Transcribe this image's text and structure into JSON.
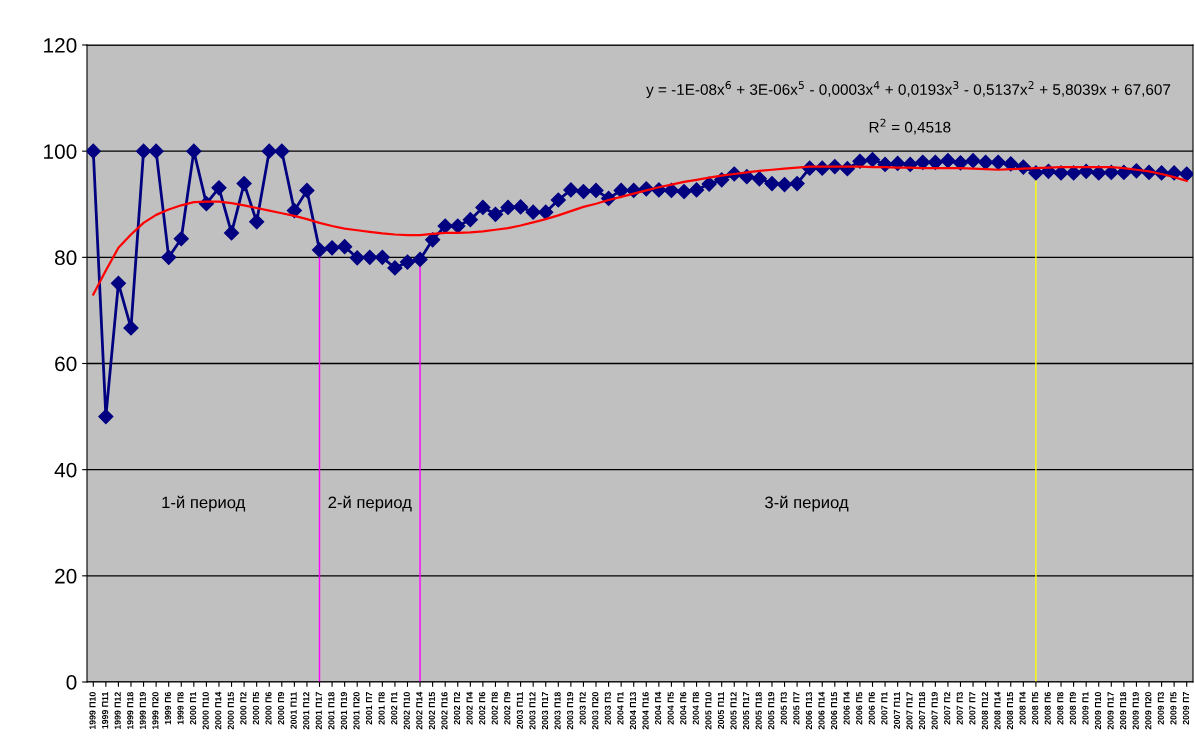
{
  "chart_data": {
    "type": "line",
    "categories": [
      "1999 П10",
      "1999 П11",
      "1999 П12",
      "1999 П18",
      "1999 П19",
      "1999 П20",
      "1999 П6",
      "1999 П8",
      "2000 П1",
      "2000 П10",
      "2000 П14",
      "2000 П15",
      "2000 П2",
      "2000 П5",
      "2000 П6",
      "2000 П9",
      "2001 П11",
      "2001 П12",
      "2001 П17",
      "2001 П18",
      "2001 П19",
      "2001 П20",
      "2001 П7",
      "2001 П8",
      "2002 П1",
      "2002 П10",
      "2002 П14",
      "2002 П15",
      "2002 П16",
      "2002 П2",
      "2002 П4",
      "2002 П6",
      "2002 П8",
      "2002 П9",
      "2003 П11",
      "2003 П12",
      "2003 П17",
      "2003 П18",
      "2003 П19",
      "2003 П2",
      "2003 П20",
      "2003 П3",
      "2004 П1",
      "2004 П13",
      "2004 П16",
      "2004 П4",
      "2004 П5",
      "2004 П6",
      "2004 П8",
      "2005 П10",
      "2005 П11",
      "2005 П12",
      "2005 П17",
      "2005 П18",
      "2005 П19",
      "2005 П3",
      "2005 П7",
      "2006 П13",
      "2006 П14",
      "2006 П15",
      "2006 П4",
      "2006 П5",
      "2006 П6",
      "2007 П1",
      "2007 П11",
      "2007 П17",
      "2007 П18",
      "2007 П19",
      "2007 П2",
      "2007 П3",
      "2007 П7",
      "2008 П12",
      "2008 П14",
      "2008 П15",
      "2008 П4",
      "2008 П5",
      "2008 П6",
      "2008 П8",
      "2008 П9",
      "2009 П1",
      "2009 П10",
      "2009 П17",
      "2009 П18",
      "2009 П19",
      "2009 П20",
      "2009 П3",
      "2009 П5",
      "2009 П7"
    ],
    "series": [
      {
        "color": "#000080",
        "marker": "diamond",
        "values": [
          100,
          50,
          75.1,
          66.7,
          100,
          100,
          80,
          83.5,
          100,
          90.1,
          93.1,
          84.6,
          93.9,
          86.7,
          100,
          100,
          88.8,
          92.6,
          81.4,
          81.8,
          82,
          79.9,
          80,
          80,
          78,
          79.1,
          79.6,
          83.3,
          85.9,
          85.9,
          87.1,
          89.4,
          88.1,
          89.4,
          89.5,
          88.5,
          88.5,
          90.8,
          92.7,
          92.4,
          92.6,
          91.1,
          92.6,
          92.6,
          92.9,
          92.7,
          92.6,
          92.4,
          92.7,
          93.8,
          94.6,
          95.7,
          95.2,
          94.8,
          93.9,
          93.7,
          93.9,
          96.8,
          96.8,
          97.1,
          96.7,
          98.1,
          98.4,
          97.5,
          97.7,
          97.5,
          97.9,
          97.9,
          98.2,
          97.8,
          98.2,
          97.9,
          97.9,
          97.6,
          97,
          95.9,
          96.2,
          95.9,
          95.9,
          96.2,
          95.9,
          96,
          96,
          96.3,
          96,
          95.9,
          95.9,
          95.7
        ]
      },
      {
        "color": "#ff0000",
        "marker": "none",
        "values": [
          73,
          77.5,
          81.8,
          84.3,
          86.5,
          88,
          89,
          89.8,
          90.4,
          90.5,
          90.5,
          90.2,
          89.8,
          89.3,
          88.8,
          88.3,
          87.8,
          87.2,
          86.5,
          85.9,
          85.4,
          85.1,
          84.8,
          84.5,
          84.3,
          84.2,
          84.2,
          84.4,
          84.6,
          84.6,
          84.7,
          84.9,
          85.2,
          85.5,
          86,
          86.6,
          87.2,
          87.9,
          88.7,
          89.5,
          90.1,
          90.8,
          91.4,
          92,
          92.6,
          93.2,
          93.7,
          94.2,
          94.6,
          95,
          95.4,
          95.7,
          96,
          96.3,
          96.5,
          96.7,
          96.9,
          97.1,
          97.1,
          97.1,
          97.1,
          97.1,
          97,
          97,
          96.9,
          96.9,
          96.8,
          96.8,
          96.8,
          96.8,
          96.7,
          96.6,
          96.5,
          96.6,
          96.7,
          96.8,
          96.9,
          97,
          97,
          97,
          97,
          97,
          96.8,
          96.5,
          96.2,
          95.7,
          95.1,
          94.4
        ]
      }
    ],
    "ylim": [
      0,
      120
    ],
    "yticks": [
      0,
      20,
      40,
      60,
      80,
      100,
      120
    ],
    "grid": "y",
    "legend": false,
    "ref_lines": [
      {
        "axis": "x",
        "value": "2001 П17",
        "color": "#ff00ff"
      },
      {
        "axis": "x",
        "value": "2002 П14",
        "color": "#ff00ff"
      },
      {
        "axis": "x",
        "value": "2008 П5",
        "color": "#ffff00"
      }
    ],
    "annotations": [
      "y = -1E-08x$^{6}$ + 3E-06x$^{5}$ - 0,0003x$^{4}$ + 0,0193x$^{3}$ - 0,5137x$^{2}$ + 5,8039x + 67,607",
      "R$^{2}$ = 0,4518",
      "1-й период",
      "2-й период",
      "3-й период"
    ]
  }
}
